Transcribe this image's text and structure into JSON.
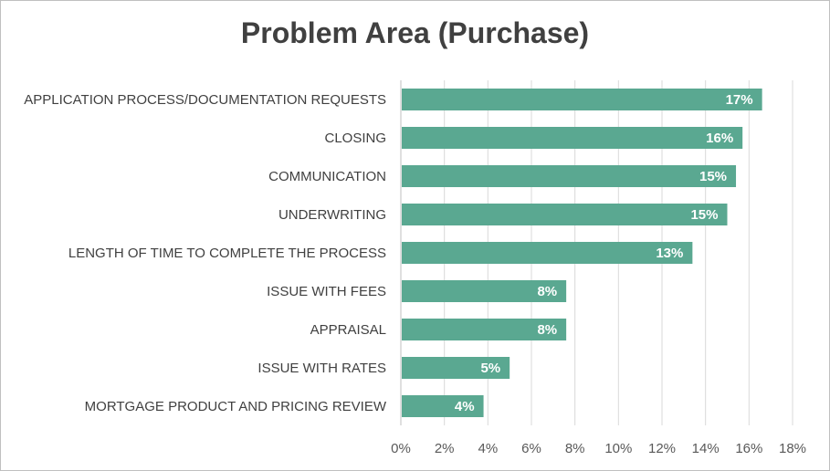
{
  "chart_data": {
    "type": "bar",
    "orientation": "horizontal",
    "title": "Problem Area (Purchase)",
    "categories": [
      "APPLICATION PROCESS/DOCUMENTATION REQUESTS",
      "CLOSING",
      "COMMUNICATION",
      "UNDERWRITING",
      "LENGTH OF TIME TO COMPLETE THE PROCESS",
      "ISSUE WITH FEES",
      "APPRAISAL",
      "ISSUE WITH RATES",
      "MORTGAGE PRODUCT AND PRICING REVIEW"
    ],
    "values": [
      16.6,
      15.7,
      15.4,
      15.0,
      13.4,
      7.6,
      7.6,
      5.0,
      3.8
    ],
    "data_labels": [
      "17%",
      "16%",
      "15%",
      "15%",
      "13%",
      "8%",
      "8%",
      "5%",
      "4%"
    ],
    "xlim": [
      0,
      18
    ],
    "x_ticks": [
      "0%",
      "2%",
      "4%",
      "6%",
      "8%",
      "10%",
      "12%",
      "14%",
      "16%",
      "18%"
    ],
    "grid": true,
    "legend": "none",
    "bar_color": "#5aa891"
  }
}
